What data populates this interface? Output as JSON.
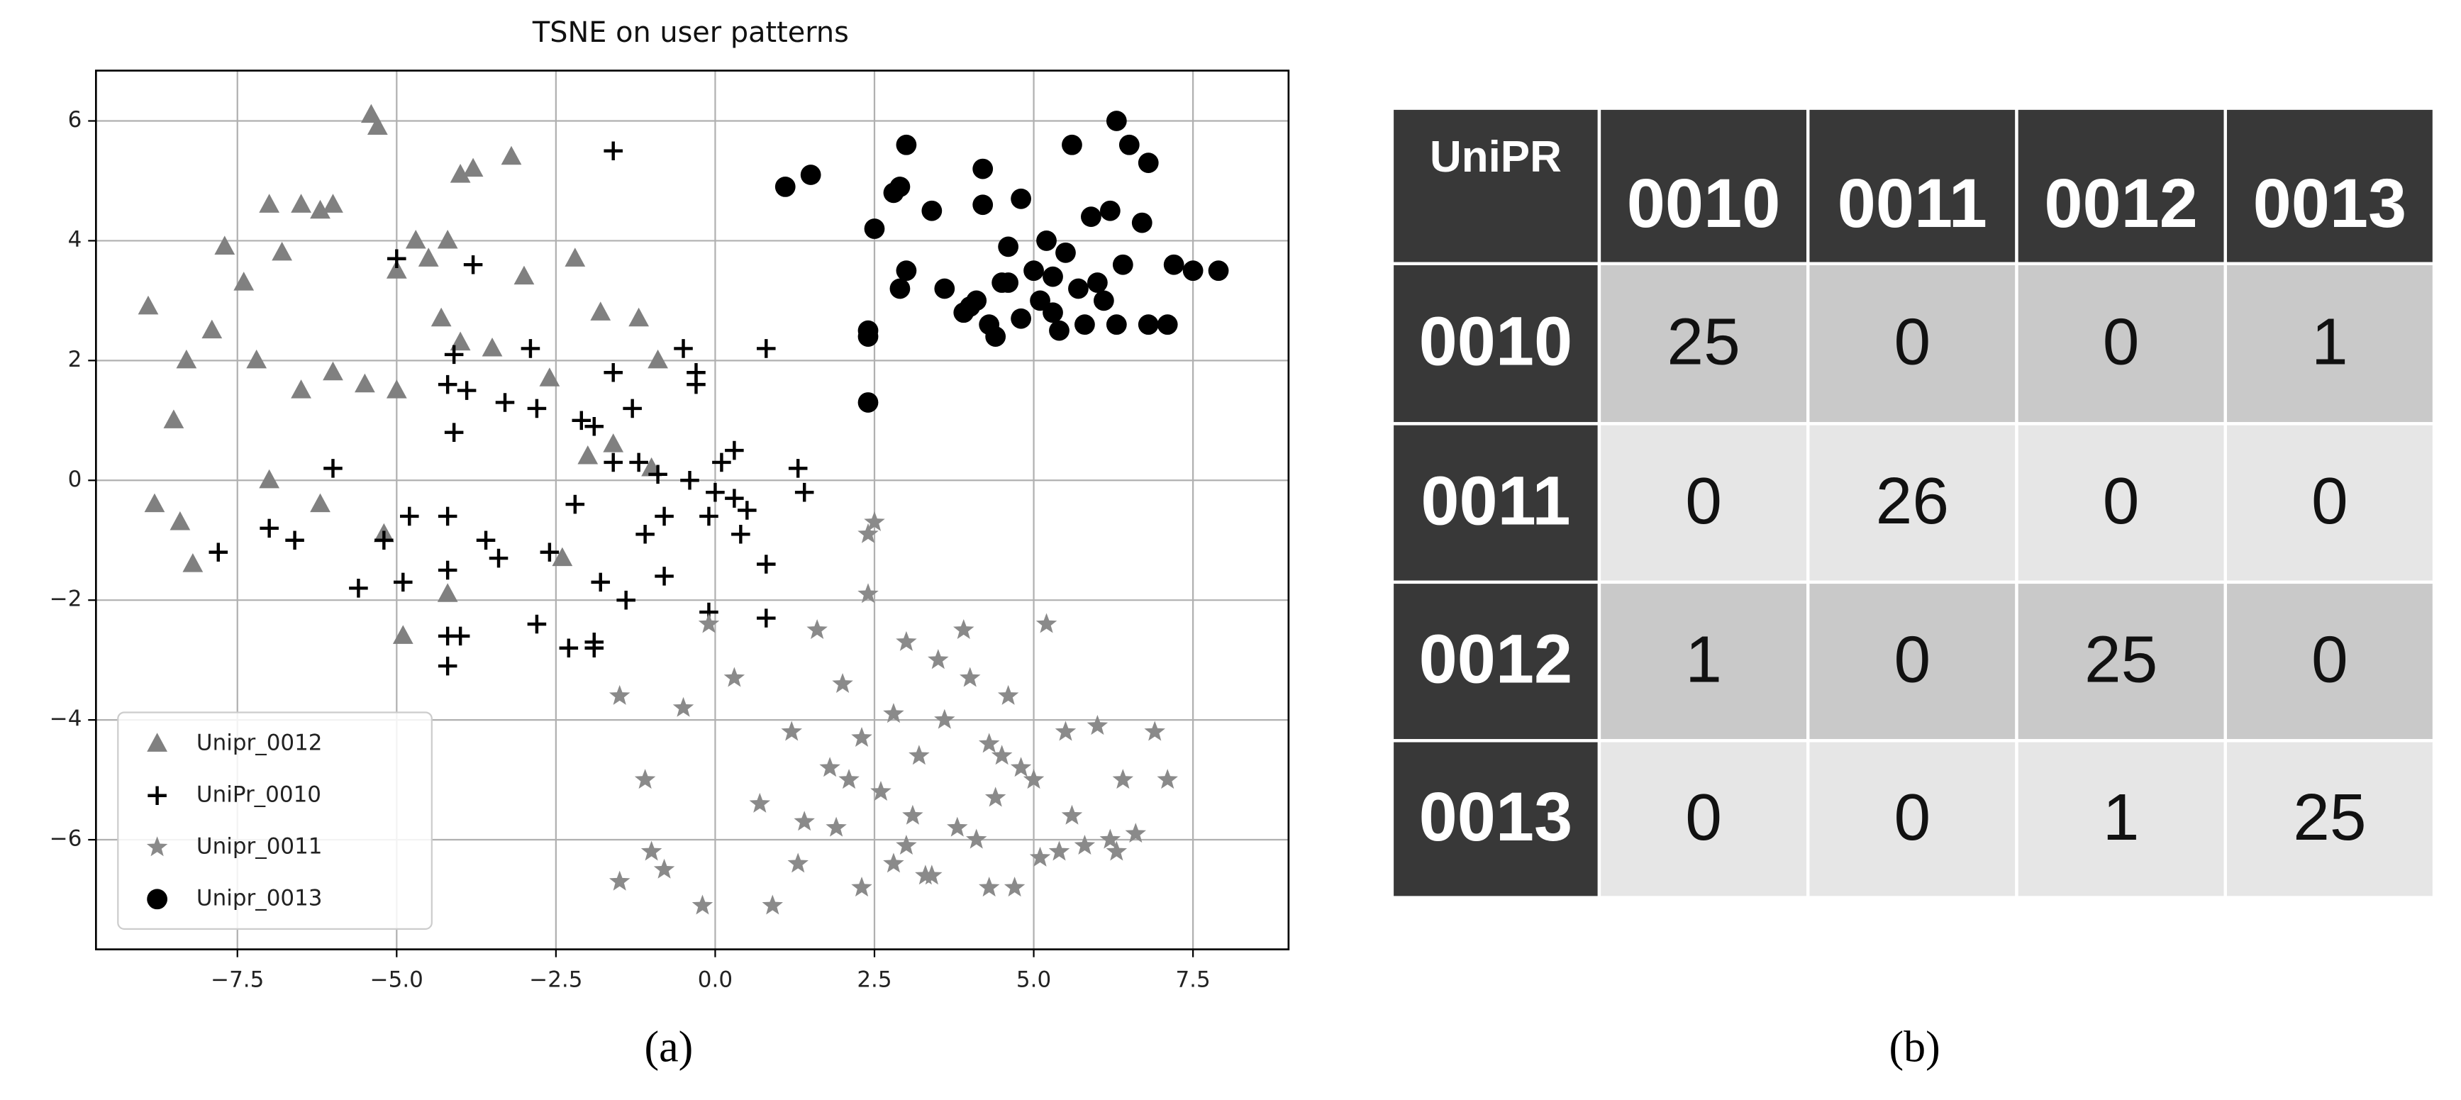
{
  "chart_data": {
    "type": "scatter",
    "title": "TSNE on user patterns",
    "xlim": [
      -9.72,
      9.0
    ],
    "ylim": [
      -7.83,
      6.84
    ],
    "xticks": [
      {
        "value": -7.5,
        "label": "−7.5"
      },
      {
        "value": -5.0,
        "label": "−5.0"
      },
      {
        "value": -2.5,
        "label": "−2.5"
      },
      {
        "value": 0,
        "label": "0.0"
      },
      2.5,
      {
        "value": 5.0,
        "label": "5.0"
      },
      7.5
    ],
    "yticks": [
      {
        "value": -6,
        "label": "−6"
      },
      {
        "value": -4,
        "label": "−4"
      },
      {
        "value": -2,
        "label": "−2"
      },
      0,
      2,
      4,
      6
    ],
    "grid": true,
    "legend": "lower left",
    "series": [
      {
        "name": "Unipr_0012",
        "color": "#808080",
        "marker": "triangle",
        "x": [
          -5.4,
          -5.3,
          -3.2,
          -4.0,
          -3.8,
          -7.0,
          -6.5,
          -6.2,
          -6.0,
          -7.7,
          -7.4,
          -6.8,
          -5.0,
          -4.7,
          -4.2,
          -4.5,
          -3.0,
          -2.2,
          -1.8,
          -1.2,
          -8.8,
          -8.3,
          -8.5,
          -7.9,
          -7.2,
          -6.5,
          -6.0,
          -5.5,
          -5.0,
          -4.3,
          -4.0,
          -3.5,
          -2.6,
          -1.6,
          -8.2,
          -8.9,
          -8.4,
          -7.0,
          -6.2,
          -5.2,
          -4.2,
          -4.9,
          -2.4,
          -0.9,
          -2.0,
          -1.0
        ],
        "y": [
          6.1,
          5.9,
          5.4,
          5.1,
          5.2,
          4.6,
          4.6,
          4.5,
          4.6,
          3.9,
          3.3,
          3.8,
          3.5,
          4.0,
          4.0,
          3.7,
          3.4,
          3.7,
          2.8,
          2.7,
          -0.4,
          2.0,
          1.0,
          2.5,
          2.0,
          1.5,
          1.8,
          1.6,
          1.5,
          2.7,
          2.3,
          2.2,
          1.7,
          0.6,
          -1.4,
          2.9,
          -0.7,
          0.0,
          -0.4,
          -0.9,
          -1.9,
          -2.6,
          -1.3,
          2.0,
          0.4,
          0.2
        ]
      },
      {
        "name": "UniPr_0010",
        "color": "#000000",
        "marker": "plus",
        "x": [
          -1.6,
          -5.0,
          -3.8,
          -4.1,
          -4.2,
          -2.9,
          -1.6,
          -0.5,
          -0.3,
          0.8,
          -2.1,
          -1.9,
          -1.3,
          -0.3,
          0.1,
          0.3,
          -3.3,
          -3.9,
          -4.1,
          -2.8,
          -1.6,
          -1.2,
          -0.9,
          -0.4,
          0.0,
          0.3,
          0.5,
          1.3,
          1.4,
          -6.0,
          -7.0,
          -6.6,
          -5.2,
          -4.8,
          -4.2,
          -3.6,
          -2.2,
          -1.1,
          -0.8,
          -0.1,
          0.4,
          0.8,
          -7.8,
          -5.6,
          -4.9,
          -4.2,
          -3.4,
          -2.6,
          -1.8,
          -1.4,
          -0.8,
          -0.1,
          0.8,
          -4.2,
          -4.0,
          -2.8,
          -1.9,
          -2.3,
          -4.2,
          -1.9
        ],
        "y": [
          5.5,
          3.7,
          3.6,
          2.1,
          1.6,
          2.2,
          1.8,
          2.2,
          1.8,
          2.2,
          1.0,
          0.9,
          1.2,
          1.6,
          0.3,
          0.5,
          1.3,
          1.5,
          0.8,
          1.2,
          0.3,
          0.3,
          0.1,
          0.0,
          -0.2,
          -0.3,
          -0.5,
          0.2,
          -0.2,
          0.2,
          -0.8,
          -1.0,
          -1.0,
          -0.6,
          -0.6,
          -1.0,
          -0.4,
          -0.9,
          -0.6,
          -0.6,
          -0.9,
          -1.4,
          -1.2,
          -1.8,
          -1.7,
          -1.5,
          -1.3,
          -1.2,
          -1.7,
          -2.0,
          -1.6,
          -2.2,
          -2.3,
          -2.6,
          -2.6,
          -2.4,
          -2.7,
          -2.8,
          -3.1,
          -2.8
        ]
      },
      {
        "name": "Unipr_0011",
        "color": "#8a8a8a",
        "marker": "star",
        "x": [
          2.5,
          2.4,
          1.6,
          2.0,
          3.0,
          3.5,
          4.0,
          4.6,
          5.2,
          -0.1,
          0.3,
          0.7,
          1.2,
          1.8,
          2.3,
          2.8,
          3.2,
          3.6,
          4.3,
          4.8,
          5.5,
          6.0,
          6.4,
          6.9,
          -1.5,
          -0.5,
          -1.1,
          1.4,
          2.1,
          2.6,
          3.1,
          3.8,
          4.4,
          5.0,
          5.6,
          6.2,
          7.1,
          1.3,
          1.9,
          2.8,
          3.3,
          4.1,
          4.7,
          5.4,
          6.3,
          -1.5,
          -1.0,
          -0.8,
          -0.2,
          0.9,
          2.3,
          3.0,
          3.4,
          4.3,
          5.1,
          5.8,
          6.6,
          2.4,
          3.9,
          4.5
        ],
        "y": [
          -0.7,
          -0.9,
          -2.5,
          -3.4,
          -2.7,
          -3.0,
          -3.3,
          -3.6,
          -2.4,
          -2.4,
          -3.3,
          -5.4,
          -4.2,
          -4.8,
          -4.3,
          -3.9,
          -4.6,
          -4.0,
          -4.4,
          -4.8,
          -4.2,
          -4.1,
          -5.0,
          -4.2,
          -3.6,
          -3.8,
          -5.0,
          -5.7,
          -5.0,
          -5.2,
          -5.6,
          -5.8,
          -5.3,
          -5.0,
          -5.6,
          -6.0,
          -5.0,
          -6.4,
          -5.8,
          -6.4,
          -6.6,
          -6.0,
          -6.8,
          -6.2,
          -6.2,
          -6.7,
          -6.2,
          -6.5,
          -7.1,
          -7.1,
          -6.8,
          -6.1,
          -6.6,
          -6.8,
          -6.3,
          -6.1,
          -5.9,
          -1.9,
          -2.5,
          -4.6
        ]
      },
      {
        "name": "Unipr_0013",
        "color": "#000000",
        "marker": "circle",
        "x": [
          1.1,
          1.5,
          3.0,
          2.9,
          5.6,
          6.3,
          6.5,
          6.8,
          4.2,
          4.8,
          2.5,
          2.8,
          3.4,
          4.2,
          5.2,
          5.9,
          6.2,
          6.7,
          4.6,
          5.3,
          2.4,
          2.9,
          3.6,
          4.1,
          4.5,
          5.0,
          5.5,
          6.0,
          6.4,
          7.2,
          7.5,
          7.9,
          3.9,
          4.3,
          4.8,
          5.3,
          5.8,
          6.3,
          6.8,
          7.1,
          2.4,
          4.6,
          5.1,
          5.4,
          6.1,
          2.4,
          4.4,
          5.7,
          3.0,
          4.0
        ],
        "y": [
          4.9,
          5.1,
          5.6,
          4.9,
          5.6,
          6.0,
          5.6,
          5.3,
          5.2,
          4.7,
          4.2,
          4.8,
          4.5,
          4.6,
          4.0,
          4.4,
          4.5,
          4.3,
          3.9,
          3.4,
          2.5,
          3.2,
          3.2,
          3.0,
          3.3,
          3.5,
          3.8,
          3.3,
          3.6,
          3.6,
          3.5,
          3.5,
          2.8,
          2.6,
          2.7,
          2.8,
          2.6,
          2.6,
          2.6,
          2.6,
          2.4,
          3.3,
          3.0,
          2.5,
          3.0,
          1.3,
          2.4,
          3.2,
          3.5,
          2.9
        ]
      }
    ]
  },
  "table": {
    "header": [
      "UniPR",
      "0010",
      "0011",
      "0012",
      "0013"
    ],
    "rows": [
      [
        "0010",
        25,
        0,
        0,
        1
      ],
      [
        "0011",
        0,
        26,
        0,
        0
      ],
      [
        "0012",
        1,
        0,
        25,
        0
      ],
      [
        "0013",
        0,
        0,
        1,
        25
      ]
    ]
  },
  "captions": [
    "(a)",
    "(b)"
  ]
}
